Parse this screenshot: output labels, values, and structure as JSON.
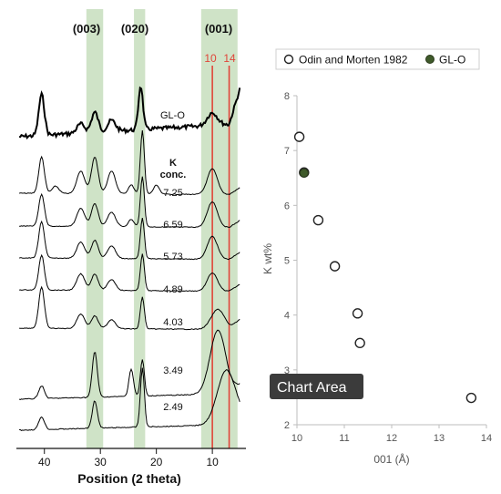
{
  "chart_data": [
    {
      "type": "line",
      "panel": "xrd-patterns",
      "xlabel": "Position (2 theta)",
      "x_ticks": [
        "40",
        "30",
        "20",
        "10"
      ],
      "xlim": [
        45,
        4
      ],
      "x_reversed": true,
      "peak_bands": [
        {
          "label": "(003)",
          "range": [
            29.5,
            32.5
          ]
        },
        {
          "label": "(020)",
          "range": [
            22,
            24
          ]
        },
        {
          "label": "(001)",
          "range": [
            5.5,
            12
          ]
        }
      ],
      "reference_lines": [
        {
          "label": "10",
          "x": 10,
          "color": "#e0453a"
        },
        {
          "label": "14",
          "x": 7,
          "color": "#e0453a"
        }
      ],
      "k_header": [
        "K",
        "conc."
      ],
      "patterns": [
        {
          "name": "GL-O"
        },
        {
          "name": "7.25"
        },
        {
          "name": "6.59"
        },
        {
          "name": "5.73"
        },
        {
          "name": "4.89"
        },
        {
          "name": "4.03"
        },
        {
          "name": "3.49"
        },
        {
          "name": "2.49"
        }
      ],
      "band_color": "#cfe3c7"
    },
    {
      "type": "scatter",
      "panel": "k-vs-d001",
      "xlabel": "001 (Å)",
      "ylabel": "K wt%",
      "xlim": [
        10,
        14
      ],
      "ylim": [
        2,
        8
      ],
      "x_ticks": [
        "10",
        "11",
        "12",
        "13",
        "14"
      ],
      "y_ticks": [
        "2",
        "3",
        "4",
        "5",
        "6",
        "7",
        "8"
      ],
      "series": [
        {
          "name": "Odin and Morten 1982",
          "marker": "open-circle",
          "color": "#222222",
          "points": [
            [
              10.05,
              7.25
            ],
            [
              10.15,
              6.6
            ],
            [
              10.45,
              5.73
            ],
            [
              10.8,
              4.89
            ],
            [
              11.28,
              4.03
            ],
            [
              11.33,
              3.49
            ],
            [
              13.68,
              2.49
            ]
          ]
        },
        {
          "name": "GL-O",
          "marker": "filled-circle",
          "color": "#3f5a2a",
          "points": [
            [
              10.15,
              6.59
            ]
          ]
        }
      ],
      "legend_position": "top",
      "tooltip": "Chart Area"
    }
  ]
}
